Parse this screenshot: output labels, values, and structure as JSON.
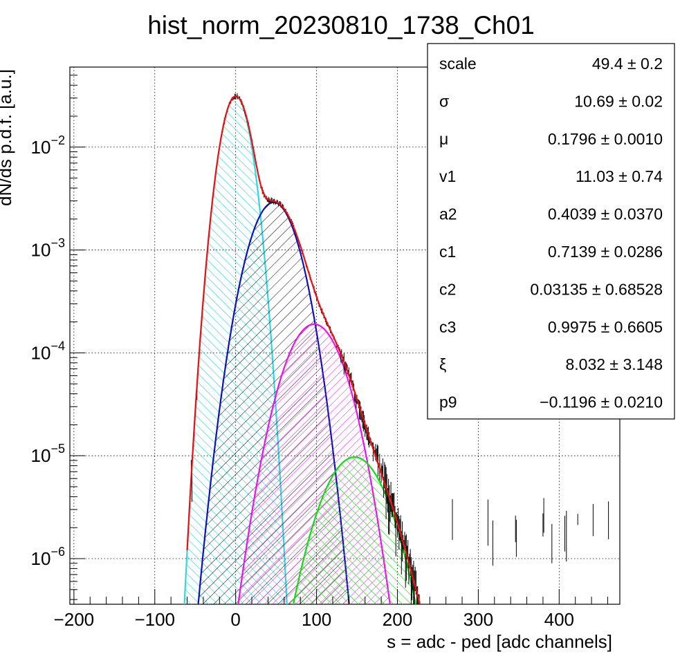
{
  "chart_data": {
    "type": "line",
    "title": "hist_norm_20230810_1738_Ch01",
    "xlabel": "s = adc - ped [adc channels]",
    "ylabel": "dN/ds p.d.f. [a.u.]",
    "xlim": [
      -205,
      475
    ],
    "ylim": [
      3.6e-07,
      0.06
    ],
    "yscale": "log",
    "grid": true,
    "x_ticks": [
      {
        "value": -200,
        "label": "−200"
      },
      {
        "value": -100,
        "label": "−100"
      },
      {
        "value": 0,
        "label": "0"
      },
      {
        "value": 100,
        "label": "100"
      },
      {
        "value": 200,
        "label": "200"
      },
      {
        "value": 300,
        "label": "300"
      },
      {
        "value": 400,
        "label": "400"
      }
    ],
    "y_ticks": [
      {
        "value": 0.01,
        "base": "10",
        "exp": "−2"
      },
      {
        "value": 0.001,
        "base": "10",
        "exp": "−3"
      },
      {
        "value": 0.0001,
        "base": "10",
        "exp": "−4"
      },
      {
        "value": 1e-05,
        "base": "10",
        "exp": "−5"
      },
      {
        "value": 1e-06,
        "base": "10",
        "exp": "−6"
      }
    ],
    "components": [
      {
        "key": "ped",
        "color": "#33d6e0",
        "hatch": "up",
        "peak_x": 0,
        "peak_y": 0.031,
        "sigma": 13.3
      },
      {
        "key": "pe1",
        "color": "#0b12b8",
        "hatch": "down-black",
        "peak_x": 47,
        "peak_y": 0.0029,
        "sigma": 22.0
      },
      {
        "key": "pe2",
        "color": "#ee11ee",
        "hatch": "cross",
        "peak_x": 97,
        "peak_y": 0.00019,
        "sigma": 26.5
      },
      {
        "key": "pe3",
        "color": "#11dd11",
        "hatch": "up",
        "peak_x": 147,
        "peak_y": 9.7e-06,
        "sigma": 29.5
      }
    ],
    "total_fit_color": "#ee1111",
    "stats": [
      {
        "label": "scale",
        "value": "49.4 ± 0.2"
      },
      {
        "label": "σ",
        "value": "10.69 ± 0.02"
      },
      {
        "label": "μ",
        "value": "0.1796 ± 0.0010"
      },
      {
        "label": "v1",
        "value": "11.03 ± 0.74"
      },
      {
        "label": "a2",
        "value": "0.4039 ± 0.0370"
      },
      {
        "label": "c1",
        "value": "0.7139 ± 0.0286"
      },
      {
        "label": "c2",
        "value": "0.03135 ± 0.68528"
      },
      {
        "label": "c3",
        "value": "0.9975 ± 0.6605"
      },
      {
        "label": "ξ",
        "value": "8.032 ± 3.148"
      },
      {
        "label": "p9",
        "value": "−0.1196 ± 0.0210"
      }
    ],
    "legend_placement": "top-right"
  }
}
